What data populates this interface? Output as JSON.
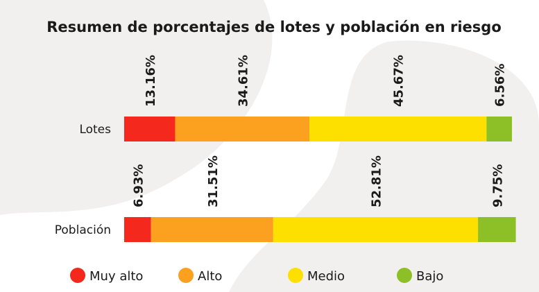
{
  "chart_data": {
    "type": "stacked-barh",
    "title": "Resumen de porcentajes de lotes y población en riesgo",
    "categories": [
      "Lotes",
      "Población"
    ],
    "xlim": [
      0,
      100
    ],
    "legend": "bottom",
    "series": [
      {
        "name": "Muy alto",
        "color": "#f4281c",
        "values": [
          13.16,
          6.93
        ],
        "value_labels": [
          "13.16%",
          "6.93%"
        ]
      },
      {
        "name": "Alto",
        "color": "#fba11f",
        "values": [
          34.61,
          31.51
        ],
        "value_labels": [
          "34.61%",
          "31.51%"
        ]
      },
      {
        "name": "Medio",
        "color": "#fde000",
        "values": [
          45.67,
          52.81
        ],
        "value_labels": [
          "45.67%",
          "52.81%"
        ]
      },
      {
        "name": "Bajo",
        "color": "#8dbf27",
        "values": [
          6.56,
          9.75
        ],
        "value_labels": [
          "6.56%",
          "9.75%"
        ]
      }
    ]
  }
}
